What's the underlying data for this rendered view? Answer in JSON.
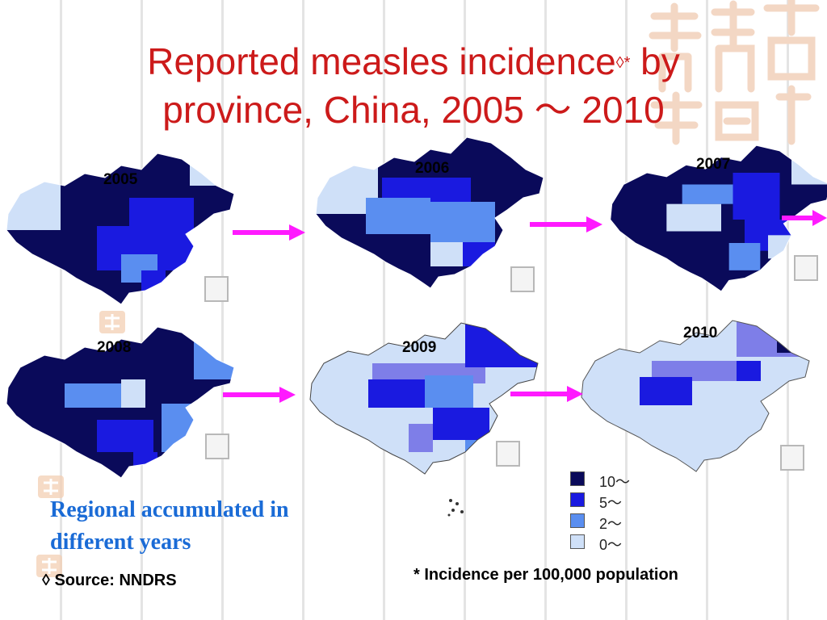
{
  "slide": {
    "title_line1": "Reported measles incidence",
    "title_sup": "◊*",
    "title_line1_end": " by",
    "title_line2": "province, China, 2005 ～ 2010"
  },
  "maps": [
    {
      "year": "2005"
    },
    {
      "year": "2006"
    },
    {
      "year": "2007"
    },
    {
      "year": "2008"
    },
    {
      "year": "2009"
    },
    {
      "year": "2010"
    }
  ],
  "legend": {
    "items": [
      {
        "label": "10～",
        "color": "#0a0a5a"
      },
      {
        "label": "5～",
        "color": "#1a1ae0"
      },
      {
        "label": "2～",
        "color": "#5a8ef0"
      },
      {
        "label": "0～",
        "color": "#cfe0f8"
      }
    ]
  },
  "caption": {
    "regional_line1": "Regional accumulated in",
    "regional_line2": "different years",
    "source": "◊ Source: NNDRS",
    "footnote": "* Incidence per 100,000 population"
  },
  "colors": {
    "title": "#cc1a1a",
    "arrow": "#ff1aff",
    "regional_text": "#1a6bd6"
  }
}
